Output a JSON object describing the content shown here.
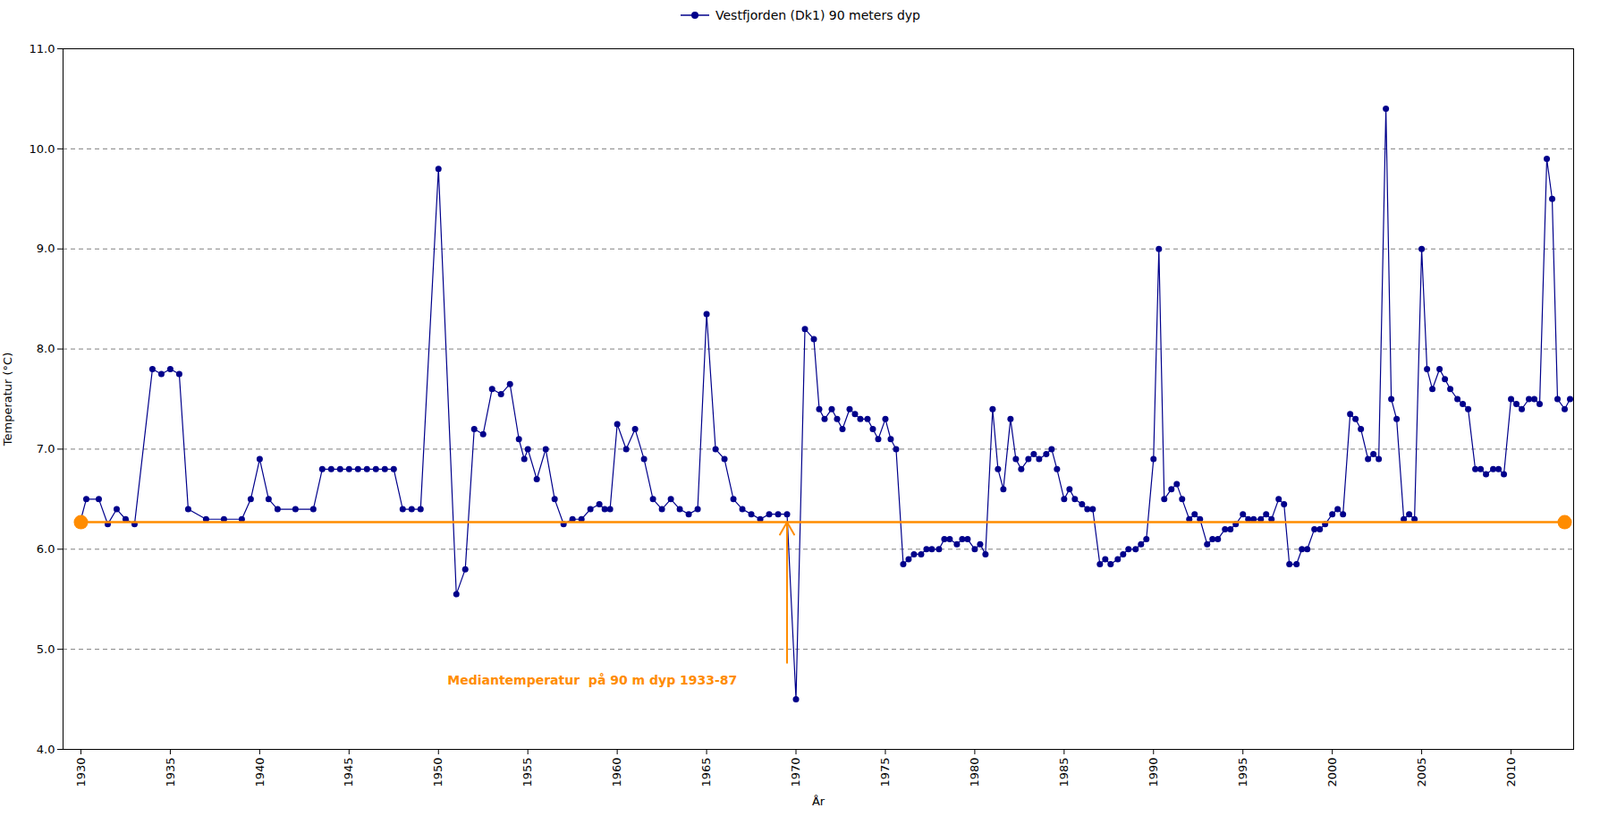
{
  "chart_data": {
    "type": "line",
    "xlabel": "År",
    "ylabel": "Temperatur (°C)",
    "xlim": [
      1929,
      2013.5
    ],
    "ylim": [
      4,
      11
    ],
    "xticks": [
      1930,
      1935,
      1940,
      1945,
      1950,
      1955,
      1960,
      1965,
      1970,
      1975,
      1980,
      1985,
      1990,
      1995,
      2000,
      2005,
      2010
    ],
    "yticks": [
      4,
      5,
      6,
      7,
      8,
      9,
      10,
      11
    ],
    "grid": true,
    "legend": "top",
    "x": [
      1930.0,
      1930.3,
      1931.0,
      1931.5,
      1932.0,
      1932.5,
      1933.0,
      1934.0,
      1934.5,
      1935.0,
      1935.5,
      1936.0,
      1937.0,
      1938.0,
      1939.0,
      1939.5,
      1940.0,
      1940.5,
      1941.0,
      1942.0,
      1943.0,
      1943.5,
      1944.0,
      1944.5,
      1945.0,
      1945.5,
      1946.0,
      1946.5,
      1947.0,
      1947.5,
      1948.0,
      1948.5,
      1949.0,
      1950.0,
      1951.0,
      1951.5,
      1952.0,
      1952.5,
      1953.0,
      1953.5,
      1954.0,
      1954.5,
      1954.8,
      1955.0,
      1955.5,
      1956.0,
      1956.5,
      1957.0,
      1957.5,
      1958.0,
      1958.5,
      1959.0,
      1959.3,
      1959.6,
      1960.0,
      1960.5,
      1961.0,
      1961.5,
      1962.0,
      1962.5,
      1963.0,
      1963.5,
      1964.0,
      1964.5,
      1965.0,
      1965.5,
      1966.0,
      1966.5,
      1967.0,
      1967.5,
      1968.0,
      1968.5,
      1969.0,
      1969.5,
      1970.0,
      1970.5,
      1971.0,
      1971.3,
      1971.6,
      1972.0,
      1972.3,
      1972.6,
      1973.0,
      1973.3,
      1973.6,
      1974.0,
      1974.3,
      1974.6,
      1975.0,
      1975.3,
      1975.6,
      1976.0,
      1976.3,
      1976.6,
      1977.0,
      1977.3,
      1977.6,
      1978.0,
      1978.3,
      1978.6,
      1979.0,
      1979.3,
      1979.6,
      1980.0,
      1980.3,
      1980.6,
      1981.0,
      1981.3,
      1981.6,
      1982.0,
      1982.3,
      1982.6,
      1983.0,
      1983.3,
      1983.6,
      1984.0,
      1984.3,
      1984.6,
      1985.0,
      1985.3,
      1985.6,
      1986.0,
      1986.3,
      1986.6,
      1987.0,
      1987.3,
      1987.6,
      1988.0,
      1988.3,
      1988.6,
      1989.0,
      1989.3,
      1989.6,
      1990.0,
      1990.3,
      1990.6,
      1991.0,
      1991.3,
      1991.6,
      1992.0,
      1992.3,
      1992.6,
      1993.0,
      1993.3,
      1993.6,
      1994.0,
      1994.3,
      1994.6,
      1995.0,
      1995.3,
      1995.6,
      1996.0,
      1996.3,
      1996.6,
      1997.0,
      1997.3,
      1997.6,
      1998.0,
      1998.3,
      1998.6,
      1999.0,
      1999.3,
      1999.6,
      2000.0,
      2000.3,
      2000.6,
      2001.0,
      2001.3,
      2001.6,
      2002.0,
      2002.3,
      2002.6,
      2003.0,
      2003.3,
      2003.6,
      2004.0,
      2004.3,
      2004.6,
      2005.0,
      2005.3,
      2005.6,
      2006.0,
      2006.3,
      2006.6,
      2007.0,
      2007.3,
      2007.6,
      2008.0,
      2008.3,
      2008.6,
      2009.0,
      2009.3,
      2009.6,
      2010.0,
      2010.3,
      2010.6,
      2011.0,
      2011.3,
      2011.6,
      2012.0,
      2012.3,
      2012.6,
      2013.0,
      2013.3
    ],
    "series": [
      {
        "name": "Vestfjorden (Dk1) 90 meters dyp",
        "color": "#00008B",
        "marker": "o",
        "values": [
          6.3,
          6.5,
          6.5,
          6.25,
          6.4,
          6.3,
          6.25,
          7.8,
          7.75,
          7.8,
          7.75,
          6.4,
          6.3,
          6.3,
          6.3,
          6.5,
          6.9,
          6.5,
          6.4,
          6.4,
          6.4,
          6.8,
          6.8,
          6.8,
          6.8,
          6.8,
          6.8,
          6.8,
          6.8,
          6.8,
          6.4,
          6.4,
          6.4,
          9.8,
          5.55,
          5.8,
          7.2,
          7.15,
          7.6,
          7.55,
          7.65,
          7.1,
          6.9,
          7.0,
          6.7,
          7.0,
          6.5,
          6.25,
          6.3,
          6.3,
          6.4,
          6.45,
          6.4,
          6.4,
          7.25,
          7.0,
          7.2,
          6.9,
          6.5,
          6.4,
          6.5,
          6.4,
          6.35,
          6.4,
          8.35,
          7.0,
          6.9,
          6.5,
          6.4,
          6.35,
          6.3,
          6.35,
          6.35,
          6.35,
          4.5,
          8.2,
          8.1,
          7.4,
          7.3,
          7.4,
          7.3,
          7.2,
          7.4,
          7.35,
          7.3,
          7.3,
          7.2,
          7.1,
          7.3,
          7.1,
          7.0,
          5.85,
          5.9,
          5.95,
          5.95,
          6.0,
          6.0,
          6.0,
          6.1,
          6.1,
          6.05,
          6.1,
          6.1,
          6.0,
          6.05,
          5.95,
          7.4,
          6.8,
          6.6,
          7.3,
          6.9,
          6.8,
          6.9,
          6.95,
          6.9,
          6.95,
          7.0,
          6.8,
          6.5,
          6.6,
          6.5,
          6.45,
          6.4,
          6.4,
          5.85,
          5.9,
          5.85,
          5.9,
          5.95,
          6.0,
          6.0,
          6.05,
          6.1,
          6.9,
          9.0,
          6.5,
          6.6,
          6.65,
          6.5,
          6.3,
          6.35,
          6.3,
          6.05,
          6.1,
          6.1,
          6.2,
          6.2,
          6.25,
          6.35,
          6.3,
          6.3,
          6.3,
          6.35,
          6.3,
          6.5,
          6.45,
          5.85,
          5.85,
          6.0,
          6.0,
          6.2,
          6.2,
          6.25,
          6.35,
          6.4,
          6.35,
          7.35,
          7.3,
          7.2,
          6.9,
          6.95,
          6.9,
          10.4,
          7.5,
          7.3,
          6.3,
          6.35,
          6.3,
          9.0,
          7.8,
          7.6,
          7.8,
          7.7,
          7.6,
          7.5,
          7.45,
          7.4,
          6.8,
          6.8,
          6.75,
          6.8,
          6.8,
          6.75,
          7.5,
          7.45,
          7.4,
          7.5,
          7.5,
          7.45,
          9.9,
          9.5,
          7.5,
          7.4,
          7.5
        ]
      }
    ],
    "median": {
      "value": 6.27,
      "x_start": 1930,
      "x_end": 2013,
      "color": "#FF8C00",
      "label": "Mediantemperatur  på 90 m dyp 1933-87",
      "label_x": 1950.5,
      "label_y": 4.65,
      "arrow_x": 1969.5
    }
  }
}
